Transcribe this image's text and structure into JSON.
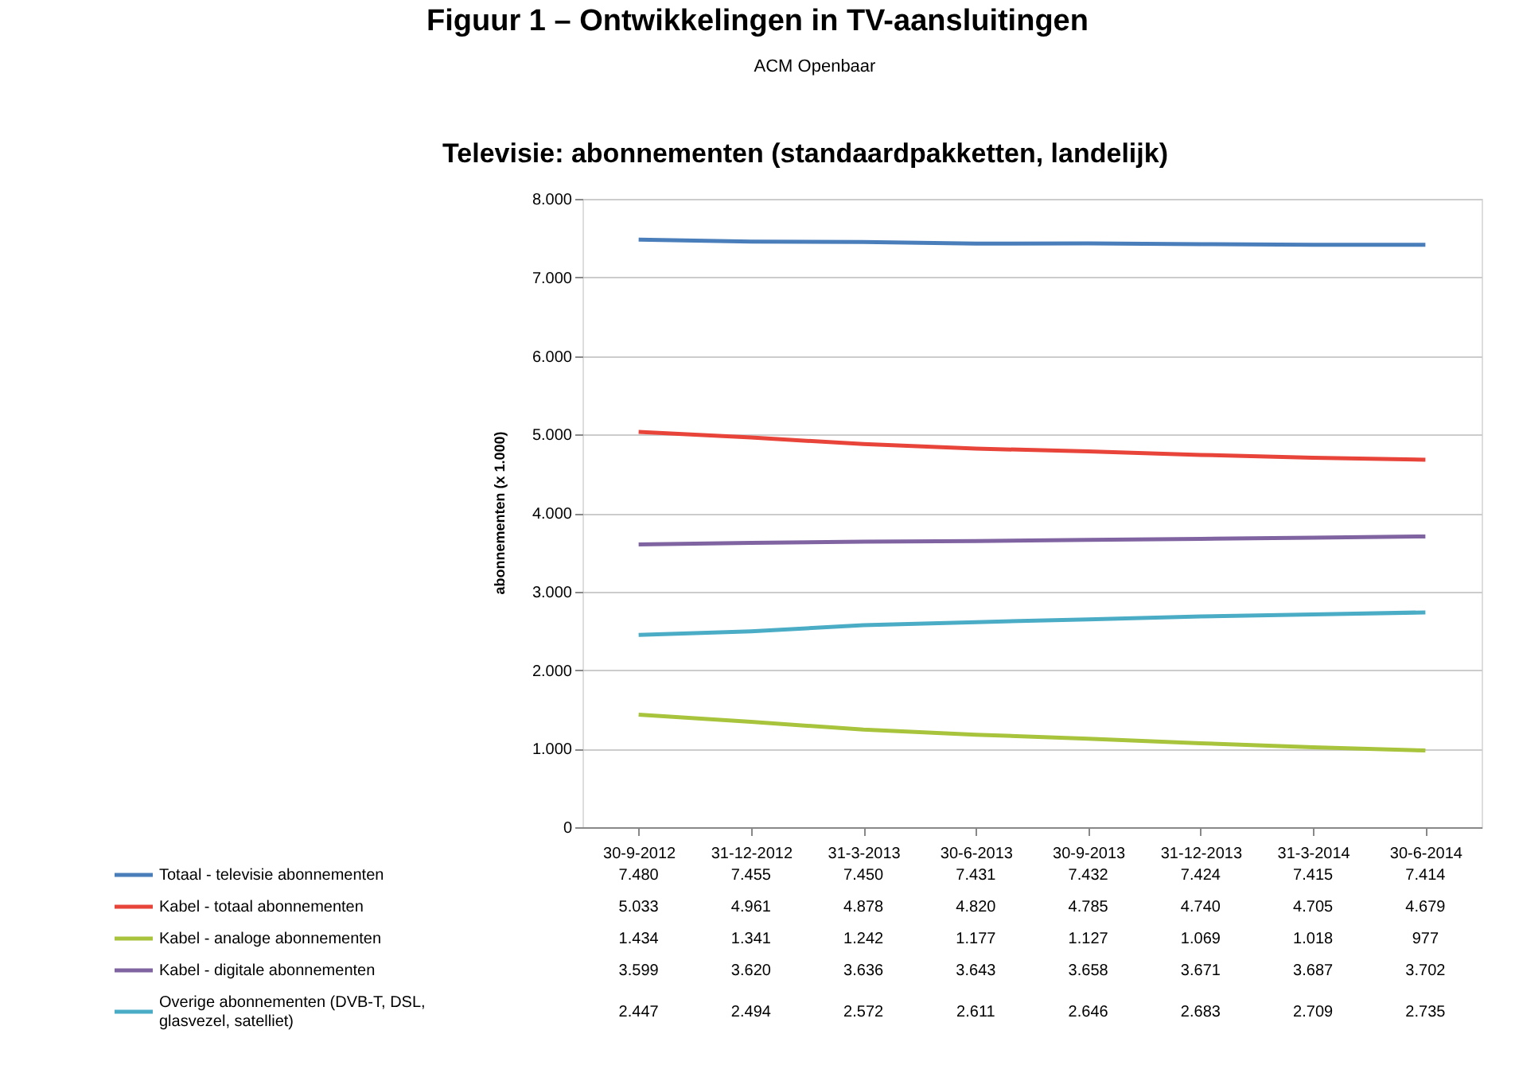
{
  "chart_data": {
    "type": "line",
    "title": "Televisie: abonnementen (standaardpakketten, landelijk)",
    "annotations": [
      "Figuur 1 – Ontwikkelingen in TV-aansluitingen",
      "ACM Openbaar"
    ],
    "ylabel": "abonnementen (x 1.000)",
    "categories": [
      "30-9-2012",
      "31-12-2012",
      "31-3-2013",
      "30-6-2013",
      "30-9-2013",
      "31-12-2013",
      "31-3-2014",
      "30-6-2014"
    ],
    "series": [
      {
        "name": "Totaal - televisie abonnementen",
        "color": "#4a7ebb",
        "values": [
          7480,
          7455,
          7450,
          7431,
          7432,
          7424,
          7415,
          7414
        ],
        "value_labels": [
          "7.480",
          "7.455",
          "7.450",
          "7.431",
          "7.432",
          "7.424",
          "7.415",
          "7.414"
        ]
      },
      {
        "name": "Kabel - totaal abonnementen",
        "color": "#e8443a",
        "values": [
          5033,
          4961,
          4878,
          4820,
          4785,
          4740,
          4705,
          4679
        ],
        "value_labels": [
          "5.033",
          "4.961",
          "4.878",
          "4.820",
          "4.785",
          "4.740",
          "4.705",
          "4.679"
        ]
      },
      {
        "name": "Kabel - analoge abonnementen",
        "color": "#a8c43c",
        "values": [
          1434,
          1341,
          1242,
          1177,
          1127,
          1069,
          1018,
          977
        ],
        "value_labels": [
          "1.434",
          "1.341",
          "1.242",
          "1.177",
          "1.127",
          "1.069",
          "1.018",
          "977"
        ]
      },
      {
        "name": "Kabel - digitale abonnementen",
        "color": "#8064a2",
        "values": [
          3599,
          3620,
          3636,
          3643,
          3658,
          3671,
          3687,
          3702
        ],
        "value_labels": [
          "3.599",
          "3.620",
          "3.636",
          "3.643",
          "3.658",
          "3.671",
          "3.687",
          "3.702"
        ]
      },
      {
        "name": "Overige abonnementen (DVB-T, DSL, glasvezel, satelliet)",
        "color": "#4bacc6",
        "values": [
          2447,
          2494,
          2572,
          2611,
          2646,
          2683,
          2709,
          2735
        ],
        "value_labels": [
          "2.447",
          "2.494",
          "2.572",
          "2.611",
          "2.646",
          "2.683",
          "2.709",
          "2.735"
        ]
      }
    ],
    "ylim": [
      0,
      8000
    ],
    "yticks": [
      0,
      {
        "value": 1000,
        "label": "1.000"
      },
      {
        "value": 2000,
        "label": "2.000"
      },
      {
        "value": 3000,
        "label": "3.000"
      },
      {
        "value": 4000,
        "label": "4.000"
      },
      {
        "value": 5000,
        "label": "5.000"
      },
      {
        "value": 6000,
        "label": "6.000"
      },
      {
        "value": 7000,
        "label": "7.000"
      },
      {
        "value": 8000,
        "label": "8.000"
      }
    ],
    "grid": "y",
    "legend": "bottom",
    "marker": "none",
    "line_style": "solid"
  }
}
